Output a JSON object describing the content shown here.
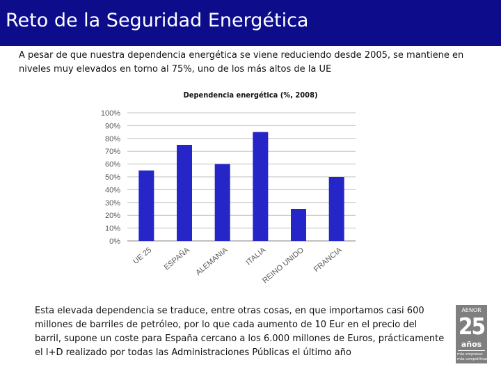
{
  "header": {
    "title": "Reto de la  Seguridad Energética"
  },
  "intro": "A pesar de que nuestra dependencia energética se viene reduciendo desde 2005, se mantiene en niveles muy elevados en torno al 75%, uno de los más altos de la UE",
  "body": "Esta elevada dependencia se traduce, entre otras cosas, en que importamos casi 600 millones de barriles de petróleo, por lo que cada aumento de 10 Eur en el precio del barril, supone un coste para España cercano a los 6.000 millones de Euros, prácticamente el I+D realizado por todas las Administraciones Públicas el último año",
  "logo": {
    "top": "AENOR",
    "number": "25",
    "word": "años",
    "line1": "más empresas",
    "line2": "más competitivas"
  },
  "colors": {
    "header_bg": "#0d0d8c",
    "bar": "#2525c8",
    "axis_text": "#595959",
    "grid": "#c0c0c0",
    "logo_bg": "#7f7f7f"
  },
  "chart_data": {
    "type": "bar",
    "title": "Dependencia energética (%, 2008)",
    "categories": [
      "UE 25",
      "ESPAÑA",
      "ALEMANIA",
      "ITALIA",
      "REINO UNIDO",
      "FRANCIA"
    ],
    "values": [
      55,
      75,
      60,
      85,
      25,
      50
    ],
    "ylim": [
      0,
      100
    ],
    "yticks": [
      "0%",
      "10%",
      "20%",
      "30%",
      "40%",
      "50%",
      "60%",
      "70%",
      "80%",
      "90%",
      "100%"
    ],
    "grid": true,
    "legend": "none"
  }
}
